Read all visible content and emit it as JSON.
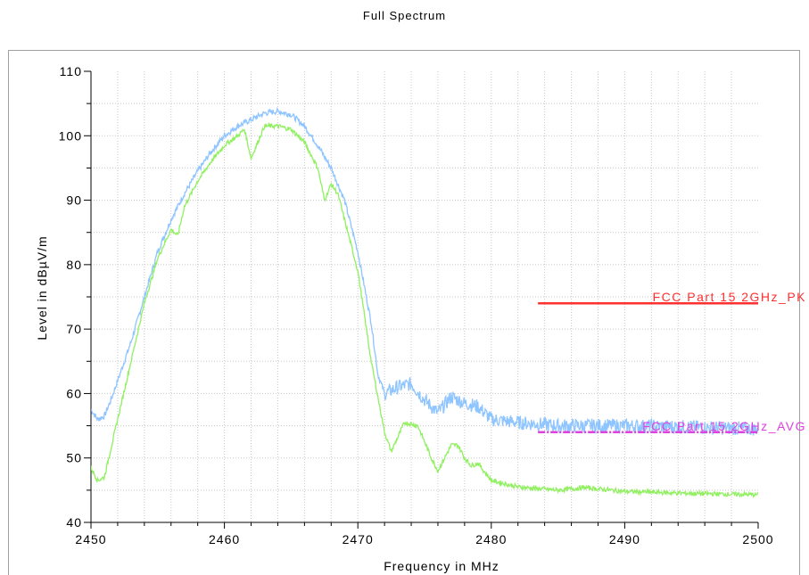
{
  "chart_data": {
    "type": "line",
    "title": "Full Spectrum",
    "xlabel": "Frequency in MHz",
    "ylabel": "Level in dBµV/m",
    "xlim": [
      2450,
      2500
    ],
    "ylim": [
      40,
      110
    ],
    "x_ticks": [
      "2450",
      "2460",
      "2470",
      "2480",
      "2490",
      "2500"
    ],
    "y_ticks": [
      "40",
      "50",
      "60",
      "70",
      "80",
      "90",
      "100",
      "110"
    ],
    "grid": true,
    "series": [
      {
        "color": "#8ec4ff",
        "noisy": true,
        "points": [
          [
            2450,
            57.5
          ],
          [
            2450.5,
            56
          ],
          [
            2451,
            56.5
          ],
          [
            2451.5,
            59
          ],
          [
            2452,
            62
          ],
          [
            2453,
            68
          ],
          [
            2454,
            75
          ],
          [
            2455,
            82
          ],
          [
            2456,
            87
          ],
          [
            2457,
            91
          ],
          [
            2458,
            94.5
          ],
          [
            2459,
            97.5
          ],
          [
            2460,
            100
          ],
          [
            2461,
            101.5
          ],
          [
            2462,
            102.5
          ],
          [
            2463,
            103.5
          ],
          [
            2464,
            103.8
          ],
          [
            2465,
            103.3
          ],
          [
            2466,
            101.5
          ],
          [
            2467,
            98.5
          ],
          [
            2468,
            95
          ],
          [
            2469,
            90
          ],
          [
            2470,
            82
          ],
          [
            2471,
            71
          ],
          [
            2471.5,
            63
          ],
          [
            2472,
            60
          ],
          [
            2473,
            61
          ],
          [
            2474,
            61.5
          ],
          [
            2475,
            59
          ],
          [
            2476,
            57
          ],
          [
            2477,
            59.5
          ],
          [
            2478,
            58.5
          ],
          [
            2479,
            58
          ],
          [
            2480,
            56
          ],
          [
            2482,
            55.5
          ],
          [
            2485,
            55
          ],
          [
            2490,
            55
          ],
          [
            2495,
            54.8
          ],
          [
            2500,
            54.5
          ]
        ]
      },
      {
        "color": "#90f060",
        "noisy": false,
        "points": [
          [
            2450,
            48.5
          ],
          [
            2450.5,
            46.5
          ],
          [
            2451,
            47
          ],
          [
            2452,
            56
          ],
          [
            2453,
            65
          ],
          [
            2454,
            74
          ],
          [
            2455,
            81
          ],
          [
            2456,
            85.5
          ],
          [
            2456.5,
            84.5
          ],
          [
            2457,
            89
          ],
          [
            2458,
            93
          ],
          [
            2459,
            96
          ],
          [
            2460,
            98.5
          ],
          [
            2461,
            100
          ],
          [
            2461.5,
            101
          ],
          [
            2462,
            96.5
          ],
          [
            2462.5,
            99
          ],
          [
            2463,
            101.5
          ],
          [
            2464,
            101.5
          ],
          [
            2465,
            101
          ],
          [
            2466,
            99
          ],
          [
            2467,
            95
          ],
          [
            2467.5,
            90
          ],
          [
            2468,
            92.5
          ],
          [
            2468.5,
            91
          ],
          [
            2469,
            87
          ],
          [
            2470,
            79
          ],
          [
            2471,
            65
          ],
          [
            2472,
            54
          ],
          [
            2472.5,
            51
          ],
          [
            2473.5,
            55.5
          ],
          [
            2474.5,
            55
          ],
          [
            2475.5,
            50
          ],
          [
            2476,
            48
          ],
          [
            2477,
            52
          ],
          [
            2477.5,
            52
          ],
          [
            2478,
            50
          ],
          [
            2478.5,
            48.8
          ],
          [
            2479,
            49.2
          ],
          [
            2480,
            46.5
          ],
          [
            2482,
            45.5
          ],
          [
            2485,
            45
          ],
          [
            2487,
            45.4
          ],
          [
            2490,
            44.8
          ],
          [
            2495,
            44.5
          ],
          [
            2500,
            44.3
          ]
        ]
      }
    ],
    "limit_lines": [
      {
        "label": "FCC Part 15 2GHz_PK",
        "color": "#ff3030",
        "x": [
          2483.5,
          2500
        ],
        "y": 74,
        "dashed": false
      },
      {
        "label": "FCC Part 15 2GHz_AVG",
        "color": "#e040e0",
        "x": [
          2483.5,
          2500
        ],
        "y": 54,
        "dashed": true
      }
    ]
  }
}
